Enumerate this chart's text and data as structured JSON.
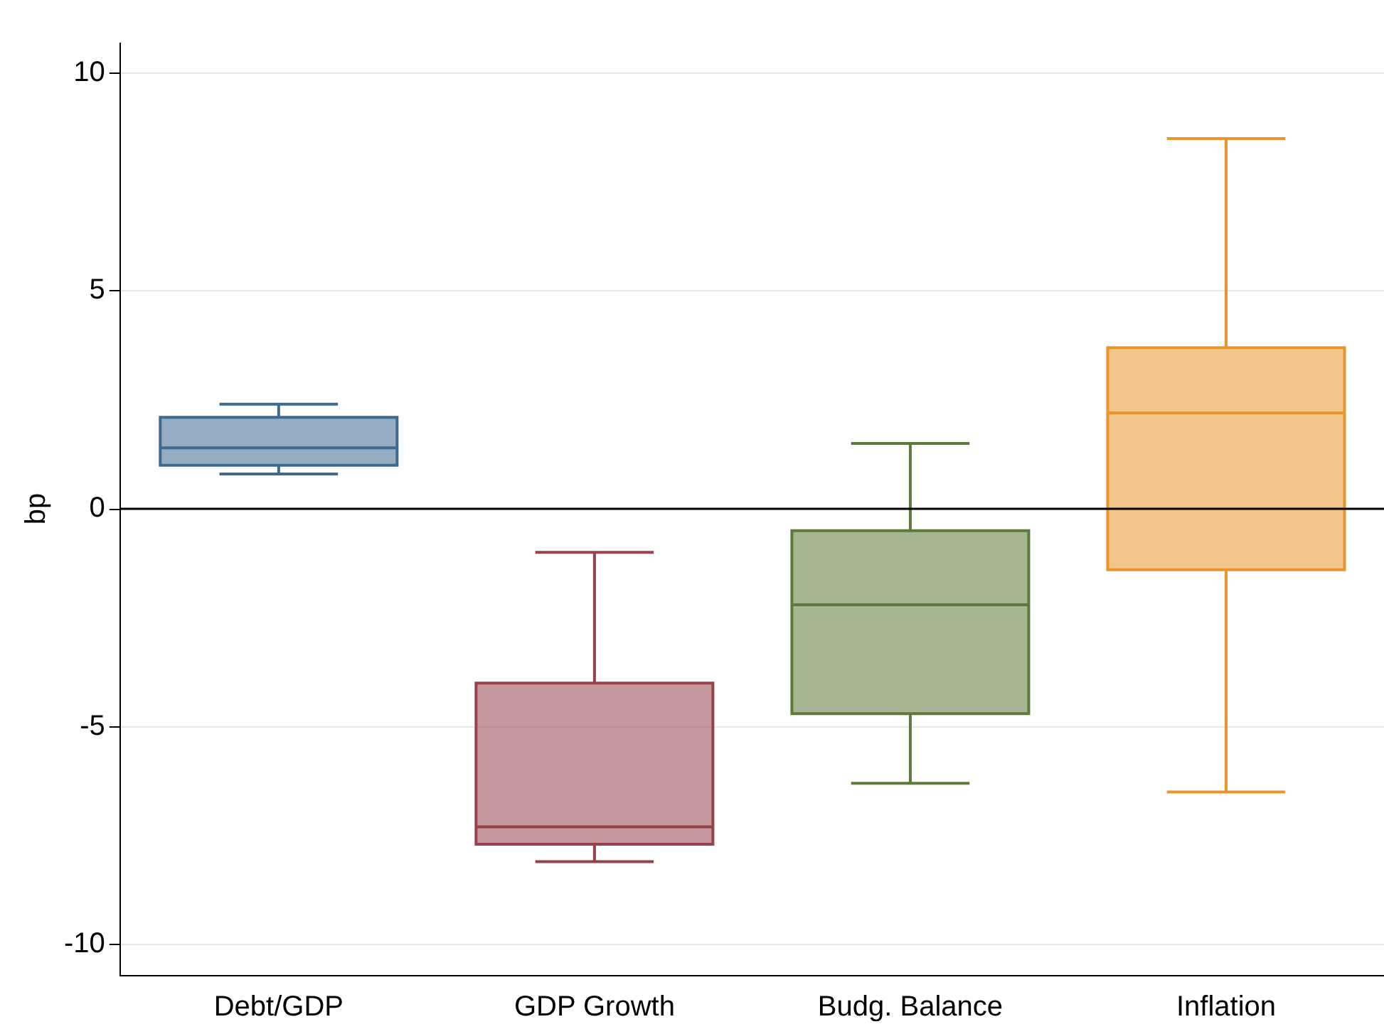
{
  "chart_data": {
    "type": "box",
    "ylabel": "bp",
    "categories": [
      "Debt/GDP",
      "GDP Growth",
      "Budg. Balance",
      "Inflation"
    ],
    "boxes": [
      {
        "low": 0.8,
        "q1": 1.0,
        "median": 1.4,
        "q3": 2.1,
        "high": 2.4
      },
      {
        "low": -8.1,
        "q1": -7.7,
        "median": -7.3,
        "q3": -4.0,
        "high": -1.0
      },
      {
        "low": -6.3,
        "q1": -4.7,
        "median": -2.2,
        "q3": -0.5,
        "high": 1.5
      },
      {
        "low": -6.5,
        "q1": -1.4,
        "median": 2.2,
        "q3": 3.7,
        "high": 8.5
      }
    ],
    "colors": [
      "#3e6a8f",
      "#97424a",
      "#5d7a3a",
      "#e8962b"
    ],
    "ylim": [
      -10.7,
      10.7
    ],
    "yticks": [
      -10,
      -5,
      0,
      5,
      10
    ],
    "grid": "y",
    "ref_lines": [
      {
        "axis": "y",
        "value": 0,
        "color": "#000000"
      }
    ]
  }
}
